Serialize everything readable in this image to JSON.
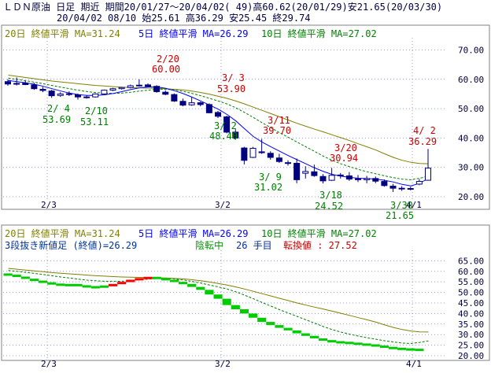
{
  "header": {
    "line1": "ＬＤＮ原油 日足 期近 期間20/01/27～20/04/02( 49)高60.62(20/01/29)安21.65(20/03/30)",
    "line2": "20/04/02 08/10 始25.61 高36.29 安25.45 終29.74"
  },
  "colors": {
    "ma20": "#808000",
    "ma5": "#0000ff",
    "ma10": "#008000",
    "candle_down": "#000080",
    "candle_up": "#000080",
    "label_high": "#cc0000",
    "label_low": "#008000",
    "three_break_up": "#ff0000",
    "three_break_down": "#00cc00",
    "label_text": "#003399"
  },
  "legend": [
    {
      "label": "20日 終値平滑 MA=31.24",
      "color": "#808000",
      "style": "solid"
    },
    {
      "label": "5日 終値平滑 MA=26.29",
      "color": "#0000ff",
      "style": "solid"
    },
    {
      "label": "10日 終値平滑 MA=27.02",
      "color": "#008000",
      "style": "dash"
    }
  ],
  "lower_status": {
    "name": "3段抜き新値足 (終値)=26.29",
    "trend": "陰転中",
    "count": "26 手目",
    "reversal": "転換値 : 27.52"
  },
  "chart_data": [
    {
      "type": "candlestick",
      "title": "ＬＤＮ原油 日足 期近",
      "x_tick_labels": [
        "2/3",
        "3/2",
        "4/1"
      ],
      "y_tick_labels": [
        "20.00",
        "30.00",
        "40.00",
        "50.00",
        "60.00",
        "70.00"
      ],
      "ylim": [
        20,
        72
      ],
      "grid": true,
      "candles": [
        {
          "o": 59.2,
          "h": 60.0,
          "l": 57.8,
          "c": 58.4
        },
        {
          "o": 58.6,
          "h": 60.62,
          "l": 57.9,
          "c": 58.6
        },
        {
          "o": 58.7,
          "h": 59.6,
          "l": 58.0,
          "c": 58.2
        },
        {
          "o": 58.1,
          "h": 58.8,
          "l": 56.4,
          "c": 56.8
        },
        {
          "o": 56.6,
          "h": 57.4,
          "l": 55.6,
          "c": 56.2
        },
        {
          "o": 56.0,
          "h": 56.4,
          "l": 53.69,
          "c": 54.4
        },
        {
          "o": 54.5,
          "h": 55.6,
          "l": 54.0,
          "c": 55.0
        },
        {
          "o": 55.1,
          "h": 55.9,
          "l": 54.3,
          "c": 54.8
        },
        {
          "o": 54.7,
          "h": 55.1,
          "l": 53.11,
          "c": 54.0
        },
        {
          "o": 53.9,
          "h": 54.6,
          "l": 53.4,
          "c": 54.0
        },
        {
          "o": 54.0,
          "h": 55.2,
          "l": 53.8,
          "c": 55.0
        },
        {
          "o": 55.0,
          "h": 56.5,
          "l": 54.8,
          "c": 56.3
        },
        {
          "o": 56.3,
          "h": 57.1,
          "l": 56.0,
          "c": 56.8
        },
        {
          "o": 56.8,
          "h": 57.4,
          "l": 56.5,
          "c": 57.2
        },
        {
          "o": 57.2,
          "h": 58.2,
          "l": 56.9,
          "c": 57.8
        },
        {
          "o": 57.8,
          "h": 60.0,
          "l": 57.5,
          "c": 58.0
        },
        {
          "o": 58.1,
          "h": 58.6,
          "l": 57.4,
          "c": 57.6
        },
        {
          "o": 57.6,
          "h": 58.0,
          "l": 55.4,
          "c": 55.8
        },
        {
          "o": 55.6,
          "h": 56.2,
          "l": 54.6,
          "c": 54.9
        },
        {
          "o": 54.8,
          "h": 55.2,
          "l": 52.3,
          "c": 52.6
        },
        {
          "o": 52.5,
          "h": 53.4,
          "l": 50.8,
          "c": 51.2
        },
        {
          "o": 51.3,
          "h": 53.9,
          "l": 51.0,
          "c": 52.0
        },
        {
          "o": 52.0,
          "h": 52.4,
          "l": 50.8,
          "c": 51.4
        },
        {
          "o": 51.4,
          "h": 51.8,
          "l": 48.4,
          "c": 48.6
        },
        {
          "o": 48.7,
          "h": 49.2,
          "l": 46.8,
          "c": 47.4
        },
        {
          "o": 47.2,
          "h": 47.6,
          "l": 41.6,
          "c": 42.0
        },
        {
          "o": 42.0,
          "h": 43.0,
          "l": 39.4,
          "c": 40.0
        },
        {
          "o": 36.6,
          "h": 37.0,
          "l": 31.02,
          "c": 32.4
        },
        {
          "o": 33.4,
          "h": 37.0,
          "l": 33.2,
          "c": 36.5
        },
        {
          "o": 35.3,
          "h": 39.7,
          "l": 34.6,
          "c": 35.0
        },
        {
          "o": 34.8,
          "h": 35.5,
          "l": 32.6,
          "c": 33.4
        },
        {
          "o": 33.2,
          "h": 34.6,
          "l": 31.5,
          "c": 32.0
        },
        {
          "o": 31.6,
          "h": 32.4,
          "l": 30.6,
          "c": 31.4
        },
        {
          "o": 31.4,
          "h": 33.0,
          "l": 24.6,
          "c": 25.8
        },
        {
          "o": 28.0,
          "h": 30.4,
          "l": 26.2,
          "c": 28.6
        },
        {
          "o": 28.5,
          "h": 30.94,
          "l": 26.8,
          "c": 27.2
        },
        {
          "o": 26.9,
          "h": 27.7,
          "l": 24.52,
          "c": 25.4
        },
        {
          "o": 25.6,
          "h": 29.8,
          "l": 25.4,
          "c": 27.3
        },
        {
          "o": 27.4,
          "h": 28.1,
          "l": 26.2,
          "c": 27.2
        },
        {
          "o": 27.1,
          "h": 28.4,
          "l": 25.4,
          "c": 26.0
        },
        {
          "o": 26.1,
          "h": 27.4,
          "l": 25.0,
          "c": 25.8
        },
        {
          "o": 25.8,
          "h": 27.1,
          "l": 24.6,
          "c": 26.2
        },
        {
          "o": 26.2,
          "h": 26.9,
          "l": 24.6,
          "c": 25.3
        },
        {
          "o": 25.2,
          "h": 25.9,
          "l": 23.4,
          "c": 23.8
        },
        {
          "o": 23.6,
          "h": 24.4,
          "l": 21.65,
          "c": 22.9
        },
        {
          "o": 22.8,
          "h": 23.6,
          "l": 22.0,
          "c": 22.9
        },
        {
          "o": 22.8,
          "h": 23.4,
          "l": 22.2,
          "c": 22.6
        },
        {
          "o": 24.3,
          "h": 26.0,
          "l": 23.9,
          "c": 25.2
        },
        {
          "o": 25.61,
          "h": 36.29,
          "l": 25.45,
          "c": 29.74
        }
      ],
      "ma20": [
        61.4,
        61.0,
        60.6,
        60.2,
        59.8,
        59.4,
        59.1,
        58.8,
        58.5,
        58.2,
        57.9,
        57.7,
        57.5,
        57.3,
        57.2,
        57.1,
        57.0,
        56.9,
        56.8,
        56.6,
        56.4,
        56.0,
        55.5,
        54.9,
        54.2,
        53.5,
        52.6,
        51.6,
        50.5,
        49.4,
        48.3,
        47.2,
        46.1,
        45.0,
        44.0,
        43.0,
        42.1,
        41.1,
        40.1,
        39.1,
        38.0,
        37.0,
        35.9,
        34.6,
        33.4,
        32.4,
        31.7,
        31.3,
        31.24
      ],
      "ma10": [
        60.4,
        60.0,
        59.5,
        59.0,
        58.5,
        57.9,
        57.3,
        56.8,
        56.3,
        55.8,
        55.5,
        55.3,
        55.2,
        55.3,
        55.6,
        56.0,
        56.3,
        56.6,
        56.6,
        56.4,
        55.9,
        55.2,
        54.4,
        53.5,
        52.6,
        51.6,
        50.3,
        48.7,
        47.0,
        45.2,
        43.5,
        41.8,
        40.2,
        38.6,
        37.0,
        35.4,
        33.8,
        32.4,
        31.2,
        30.2,
        29.3,
        28.5,
        27.8,
        27.1,
        26.5,
        26.0,
        25.8,
        26.3,
        27.02
      ],
      "ma5": [
        59.6,
        59.2,
        58.8,
        58.3,
        57.6,
        56.8,
        56.0,
        55.3,
        54.8,
        54.5,
        54.5,
        54.7,
        55.2,
        55.8,
        56.5,
        57.1,
        57.4,
        57.4,
        56.9,
        56.1,
        55.1,
        53.9,
        52.6,
        51.2,
        49.8,
        48.0,
        45.8,
        43.1,
        40.5,
        38.6,
        37.0,
        35.5,
        34.0,
        32.6,
        31.2,
        29.8,
        28.6,
        27.6,
        27.0,
        26.6,
        26.3,
        26.2,
        26.0,
        25.6,
        25.0,
        24.2,
        23.7,
        24.6,
        26.29
      ],
      "annotations": [
        {
          "label": "2/20",
          "value": "60.00",
          "kind": "high"
        },
        {
          "label": "3/ 3",
          "value": "53.90",
          "kind": "high"
        },
        {
          "label": "3/11",
          "value": "39.70",
          "kind": "high"
        },
        {
          "label": "3/20",
          "value": "30.94",
          "kind": "high"
        },
        {
          "label": "4/ 2",
          "value": "36.29",
          "kind": "high"
        },
        {
          "label": "2/ 4",
          "value": "53.69",
          "kind": "low"
        },
        {
          "label": "2/10",
          "value": "53.11",
          "kind": "low"
        },
        {
          "label": "3/ 2",
          "value": "48.40",
          "kind": "low"
        },
        {
          "label": "3/ 9",
          "value": "31.02",
          "kind": "low"
        },
        {
          "label": "3/18",
          "value": "24.52",
          "kind": "low"
        },
        {
          "label": "3/30",
          "value": "21.65",
          "kind": "low"
        }
      ]
    },
    {
      "type": "three-line-break",
      "x_tick_labels": [
        "2/3",
        "3/2",
        "4/1"
      ],
      "y_tick_labels": [
        "20.00",
        "25.00",
        "30.00",
        "35.00",
        "40.00",
        "45.00",
        "50.00",
        "55.00",
        "60.00",
        "65.00"
      ],
      "ylim": [
        20,
        67
      ],
      "grid": true,
      "blocks": [
        {
          "from": 59.0,
          "to": 58.4,
          "dir": "down"
        },
        {
          "from": 58.4,
          "to": 57.5,
          "dir": "down"
        },
        {
          "from": 57.5,
          "to": 56.5,
          "dir": "down"
        },
        {
          "from": 56.5,
          "to": 55.6,
          "dir": "down"
        },
        {
          "from": 55.6,
          "to": 54.8,
          "dir": "down"
        },
        {
          "from": 54.8,
          "to": 54.2,
          "dir": "down"
        },
        {
          "from": 54.2,
          "to": 54.0,
          "dir": "down"
        },
        {
          "from": 54.0,
          "to": 54.0,
          "dir": "down"
        },
        {
          "from": 54.0,
          "to": 53.5,
          "dir": "down"
        },
        {
          "from": 53.4,
          "to": 53.0,
          "dir": "down"
        },
        {
          "from": 53.0,
          "to": 53.0,
          "dir": "down"
        },
        {
          "from": 53.0,
          "to": 53.3,
          "dir": "down"
        },
        {
          "from": 53.3,
          "to": 54.0,
          "dir": "up"
        },
        {
          "from": 54.0,
          "to": 55.0,
          "dir": "up"
        },
        {
          "from": 55.0,
          "to": 56.0,
          "dir": "up"
        },
        {
          "from": 56.0,
          "to": 56.8,
          "dir": "up"
        },
        {
          "from": 56.8,
          "to": 57.4,
          "dir": "up"
        },
        {
          "from": 57.4,
          "to": 56.8,
          "dir": "down"
        },
        {
          "from": 56.8,
          "to": 56.0,
          "dir": "down"
        },
        {
          "from": 56.0,
          "to": 55.0,
          "dir": "down"
        },
        {
          "from": 55.0,
          "to": 54.0,
          "dir": "down"
        },
        {
          "from": 54.0,
          "to": 52.6,
          "dir": "down"
        },
        {
          "from": 52.6,
          "to": 51.2,
          "dir": "down"
        },
        {
          "from": 51.2,
          "to": 49.0,
          "dir": "down"
        },
        {
          "from": 49.0,
          "to": 47.0,
          "dir": "down"
        },
        {
          "from": 47.0,
          "to": 44.0,
          "dir": "down"
        },
        {
          "from": 44.0,
          "to": 42.0,
          "dir": "down"
        },
        {
          "from": 42.0,
          "to": 40.0,
          "dir": "down"
        },
        {
          "from": 40.0,
          "to": 38.0,
          "dir": "down"
        },
        {
          "from": 38.0,
          "to": 36.0,
          "dir": "down"
        },
        {
          "from": 36.0,
          "to": 34.5,
          "dir": "down"
        },
        {
          "from": 34.5,
          "to": 33.2,
          "dir": "down"
        },
        {
          "from": 33.2,
          "to": 32.0,
          "dir": "down"
        },
        {
          "from": 32.0,
          "to": 30.6,
          "dir": "down"
        },
        {
          "from": 30.6,
          "to": 29.4,
          "dir": "down"
        },
        {
          "from": 29.4,
          "to": 28.2,
          "dir": "down"
        },
        {
          "from": 28.2,
          "to": 27.4,
          "dir": "down"
        },
        {
          "from": 27.4,
          "to": 26.9,
          "dir": "down"
        },
        {
          "from": 26.9,
          "to": 26.6,
          "dir": "down"
        },
        {
          "from": 26.6,
          "to": 26.2,
          "dir": "down"
        },
        {
          "from": 26.2,
          "to": 25.8,
          "dir": "down"
        },
        {
          "from": 25.8,
          "to": 25.4,
          "dir": "down"
        },
        {
          "from": 25.4,
          "to": 24.8,
          "dir": "down"
        },
        {
          "from": 24.8,
          "to": 24.2,
          "dir": "down"
        },
        {
          "from": 24.2,
          "to": 23.8,
          "dir": "down"
        },
        {
          "from": 23.8,
          "to": 23.5,
          "dir": "down"
        },
        {
          "from": 23.5,
          "to": 23.3,
          "dir": "down"
        },
        {
          "from": 23.3,
          "to": 23.1,
          "dir": "down"
        }
      ],
      "ma20": [
        61.4,
        61.0,
        60.6,
        60.2,
        59.8,
        59.4,
        59.1,
        58.8,
        58.5,
        58.2,
        57.9,
        57.7,
        57.5,
        57.3,
        57.2,
        57.1,
        57.0,
        56.9,
        56.8,
        56.6,
        56.4,
        56.0,
        55.5,
        54.9,
        54.2,
        53.5,
        52.6,
        51.6,
        50.5,
        49.4,
        48.3,
        47.2,
        46.1,
        45.0,
        44.0,
        43.0,
        42.1,
        41.1,
        40.1,
        39.1,
        38.0,
        37.0,
        35.9,
        34.6,
        33.4,
        32.4,
        31.7,
        31.3,
        31.24
      ],
      "ma10": [
        60.4,
        60.0,
        59.5,
        59.0,
        58.5,
        57.9,
        57.3,
        56.8,
        56.3,
        55.8,
        55.5,
        55.3,
        55.2,
        55.3,
        55.6,
        56.0,
        56.3,
        56.6,
        56.6,
        56.4,
        55.9,
        55.2,
        54.4,
        53.5,
        52.6,
        51.6,
        50.3,
        48.7,
        47.0,
        45.2,
        43.5,
        41.8,
        40.2,
        38.6,
        37.0,
        35.4,
        33.8,
        32.4,
        31.2,
        30.2,
        29.3,
        28.5,
        27.8,
        27.1,
        26.5,
        26.0,
        25.8,
        26.3,
        27.02
      ]
    }
  ]
}
